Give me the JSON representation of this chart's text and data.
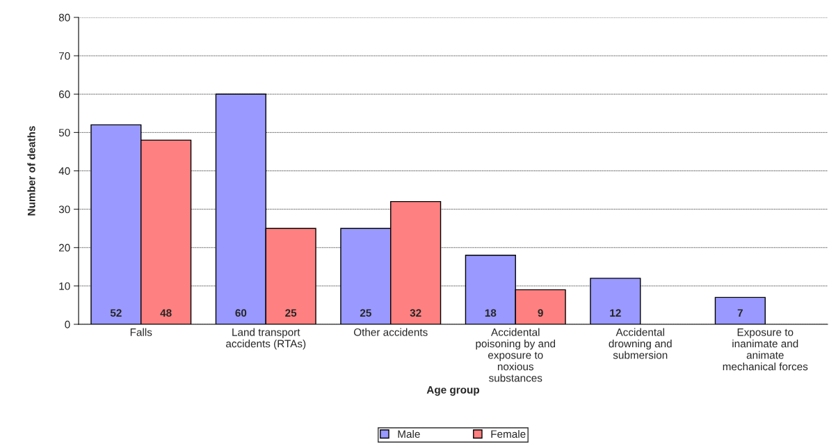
{
  "chart_data": {
    "type": "bar",
    "xlabel": "Age group",
    "ylabel": "Number of deaths",
    "categories": [
      "Falls",
      "Land transport\naccidents (RTAs)",
      "Other accidents",
      "Accidental\npoisoning by and\nexposure to\nnoxious\nsubstances",
      "Accidental\ndrowning and\nsubmersion",
      "Exposure to\ninanimate and\nanimate\nmechanical forces"
    ],
    "series": [
      {
        "name": "Male",
        "color": "#9999ff",
        "values": [
          52,
          60,
          25,
          18,
          12,
          7
        ]
      },
      {
        "name": "Female",
        "color": "#ff8080",
        "values": [
          48,
          25,
          32,
          9,
          null,
          null
        ]
      }
    ],
    "ylim": [
      0,
      80
    ],
    "yticks": [
      0,
      10,
      20,
      30,
      40,
      50,
      60,
      70,
      80
    ],
    "grid": "y",
    "legend": "bottom",
    "data_labels": true
  }
}
